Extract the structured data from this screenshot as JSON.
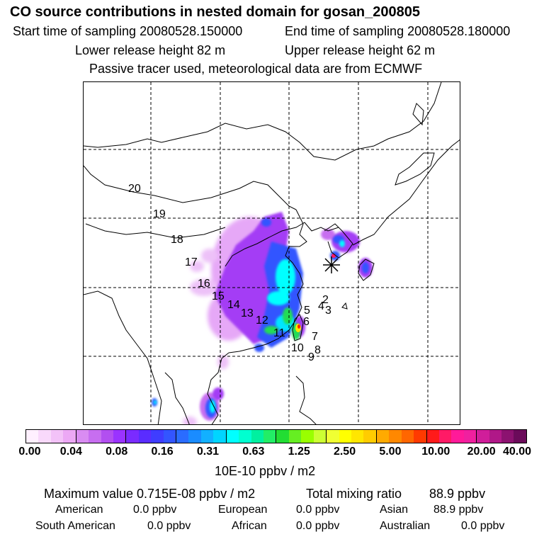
{
  "header": {
    "title": "CO  source contributions in nested domain for gosan_200805",
    "start_time": "Start time of sampling 20080528.150000",
    "end_time": "End time of sampling 20080528.180000",
    "lower_release": "Lower release height   82 m",
    "upper_release": "Upper release height   62 m",
    "note": "Passive tracer used, meteorological data are from ECMWF"
  },
  "map": {
    "receptor_icon": "asterisk-icon",
    "track_labels": [
      "2",
      "3",
      "4",
      "5",
      "6",
      "7",
      "8",
      "9",
      "10",
      "11",
      "12",
      "13",
      "14",
      "15",
      "16",
      "17",
      "18",
      "19",
      "20"
    ],
    "plume_colors": {
      "light": "#d98cf2",
      "violet": "#9a33ff",
      "blue": "#3355ff",
      "cyan": "#00e5ff",
      "green": "#22dd55",
      "yellow": "#ffe600",
      "red": "#ff2200"
    }
  },
  "colorbar": {
    "ticks": [
      "0.00",
      "0.04",
      "0.08",
      "0.16",
      "0.31",
      "0.63",
      "1.25",
      "2.50",
      "5.00",
      "10.00",
      "20.00",
      "40.00"
    ],
    "colors": [
      "#fff0ff",
      "#f9d9fb",
      "#f3c2f8",
      "#eca8f5",
      "#d98cf2",
      "#c76ef0",
      "#b24ff0",
      "#9a33ff",
      "#7a2bff",
      "#5a2cff",
      "#3f3dff",
      "#3355ff",
      "#2a6cff",
      "#1a8cff",
      "#12b0ff",
      "#00d5ff",
      "#00ffff",
      "#00ffd0",
      "#00f0a0",
      "#22ee66",
      "#22dd33",
      "#66ee22",
      "#99ff00",
      "#ccff33",
      "#f0ff33",
      "#ffff00",
      "#ffe600",
      "#ffcc00",
      "#ffaa00",
      "#ff8800",
      "#ff6600",
      "#ff3a00",
      "#ff1a1a",
      "#ff1a66",
      "#ff1a99",
      "#f0209f",
      "#d01e9a",
      "#b01888",
      "#8c1270",
      "#6b0b5a"
    ],
    "unit": "10E-10 ppbv / m2"
  },
  "stats": {
    "maximum_value": "Maximum value  0.715E-08 ppbv / m2",
    "total_label": "Total mixing ratio",
    "total_value": "88.9 ppbv"
  },
  "regions": {
    "american_label": "American",
    "american_value": "0.0 ppbv",
    "european_label": "European",
    "european_value": "0.0 ppbv",
    "asian_label": "Asian",
    "asian_value": "88.9 ppbv",
    "south_american_label": "South American",
    "south_american_value": "0.0 ppbv",
    "african_label": "African",
    "african_value": "0.0 ppbv",
    "australian_label": "Australian",
    "australian_value": "0.0 ppbv"
  }
}
